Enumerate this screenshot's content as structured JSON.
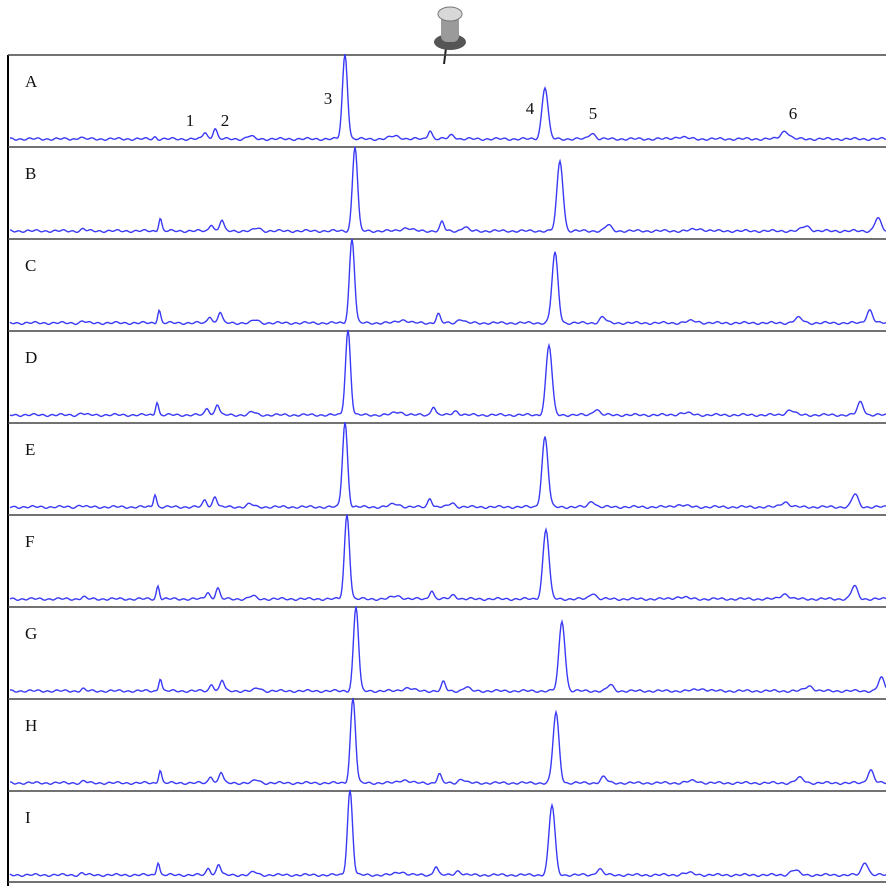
{
  "panels": [
    "A",
    "B",
    "C",
    "D",
    "E",
    "F",
    "G",
    "H",
    "I"
  ],
  "peak_labels": [
    "1",
    "2",
    "3",
    "4",
    "5",
    "6"
  ]
}
